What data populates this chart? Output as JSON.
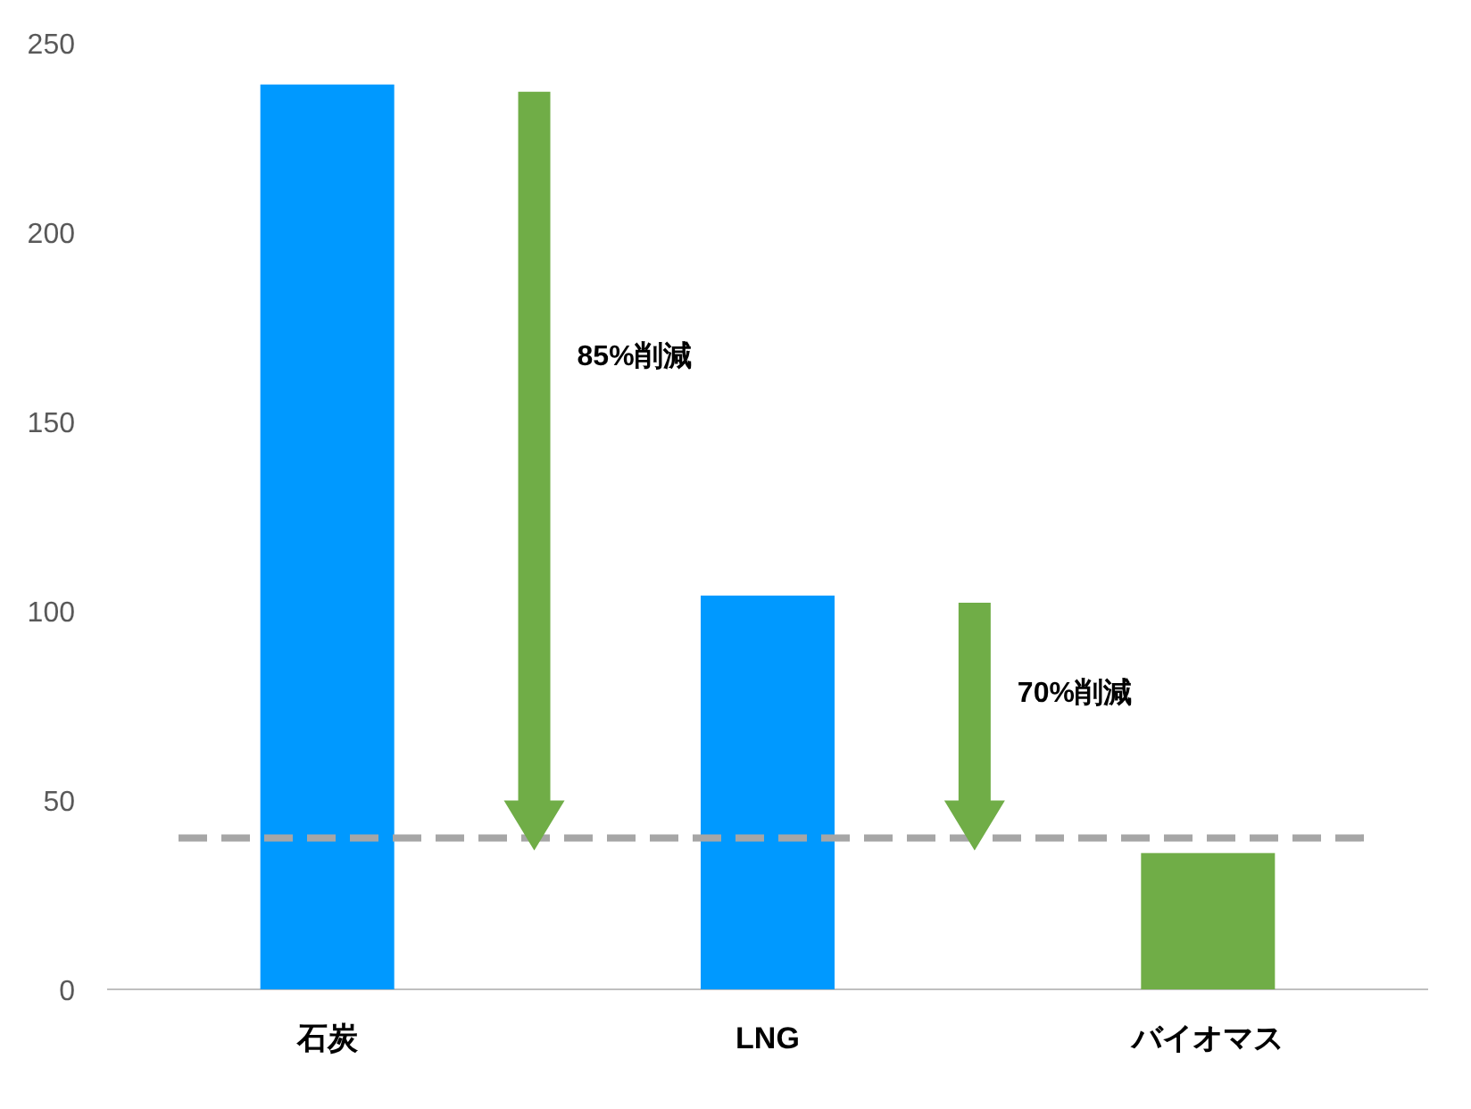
{
  "chart_data": {
    "type": "bar",
    "categories": [
      "石炭",
      "LNG",
      "バイオマス"
    ],
    "values": [
      239,
      104,
      36
    ],
    "colors": [
      "#0099ff",
      "#0099ff",
      "#70ad47"
    ],
    "ylim": [
      0,
      250
    ],
    "yticks": [
      0,
      50,
      100,
      150,
      200,
      250
    ],
    "ref_lines": [
      {
        "axis": "y",
        "value": 40,
        "color": "#a6a6a6",
        "line_style": "dashed"
      }
    ],
    "annotations": [
      "85%削減",
      "70%削減"
    ]
  }
}
